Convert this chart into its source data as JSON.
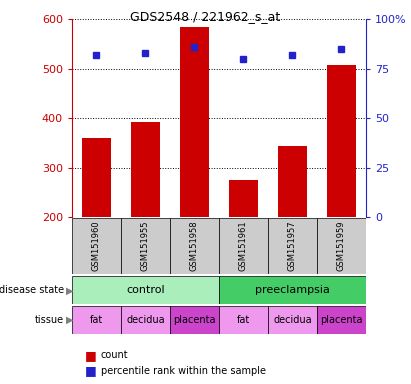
{
  "title": "GDS2548 / 221962_s_at",
  "samples": [
    "GSM151960",
    "GSM151955",
    "GSM151958",
    "GSM151961",
    "GSM151957",
    "GSM151959"
  ],
  "counts": [
    360,
    393,
    585,
    275,
    343,
    508
  ],
  "percentile_ranks": [
    82,
    83,
    86,
    80,
    82,
    85
  ],
  "ylim_left": [
    200,
    600
  ],
  "ylim_right": [
    0,
    100
  ],
  "yticks_left": [
    200,
    300,
    400,
    500,
    600
  ],
  "yticks_right": [
    0,
    25,
    50,
    75,
    100
  ],
  "bar_color": "#cc0000",
  "marker_color": "#2222cc",
  "bar_width": 0.6,
  "disease_state": [
    {
      "label": "control",
      "span": [
        0,
        3
      ],
      "color": "#aaeebb"
    },
    {
      "label": "preeclampsia",
      "span": [
        3,
        6
      ],
      "color": "#44cc66"
    }
  ],
  "tissue": [
    {
      "label": "fat",
      "span": [
        0,
        1
      ],
      "color": "#ee99ee"
    },
    {
      "label": "decidua",
      "span": [
        1,
        2
      ],
      "color": "#ee99ee"
    },
    {
      "label": "placenta",
      "span": [
        2,
        3
      ],
      "color": "#cc44cc"
    },
    {
      "label": "fat",
      "span": [
        3,
        4
      ],
      "color": "#ee99ee"
    },
    {
      "label": "decidua",
      "span": [
        4,
        5
      ],
      "color": "#ee99ee"
    },
    {
      "label": "placenta",
      "span": [
        5,
        6
      ],
      "color": "#cc44cc"
    }
  ],
  "left_axis_color": "#cc0000",
  "right_axis_color": "#2222cc",
  "grid_color": "black",
  "sample_box_color": "#cccccc",
  "legend_count_color": "#cc0000",
  "legend_pct_color": "#2222cc"
}
